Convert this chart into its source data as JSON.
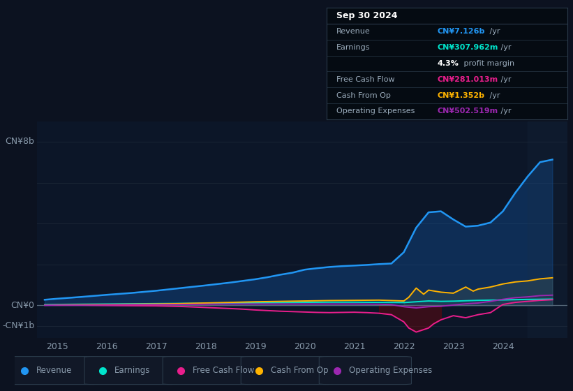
{
  "bg_color": "#0c1220",
  "plot_bg_color": "#0c1628",
  "grid_color": "#1a2535",
  "title_date": "Sep 30 2024",
  "table_rows": [
    {
      "label": "Revenue",
      "value": "CN¥7.126b",
      "unit": " /yr",
      "color": "#2196f3"
    },
    {
      "label": "Earnings",
      "value": "CN¥307.962m",
      "unit": " /yr",
      "color": "#00e5cc"
    },
    {
      "label": "",
      "value": "4.3%",
      "unit": " profit margin",
      "color": "#ffffff"
    },
    {
      "label": "Free Cash Flow",
      "value": "CN¥281.013m",
      "unit": " /yr",
      "color": "#e91e8c"
    },
    {
      "label": "Cash From Op",
      "value": "CN¥1.352b",
      "unit": " /yr",
      "color": "#ffb300"
    },
    {
      "label": "Operating Expenses",
      "value": "CN¥502.519m",
      "unit": " /yr",
      "color": "#9c27b0"
    }
  ],
  "series_colors": [
    "#2196f3",
    "#00e5cc",
    "#e91e8c",
    "#ffb300",
    "#9c27b0"
  ],
  "legend_labels": [
    "Revenue",
    "Earnings",
    "Free Cash Flow",
    "Cash From Op",
    "Operating Expenses"
  ],
  "legend_dot_colors": [
    "#2196f3",
    "#00e5cc",
    "#e91e8c",
    "#ffb300",
    "#9c27b0"
  ],
  "ylabel_top": "CN¥8b",
  "ylabel_zero": "CN¥0",
  "ylabel_bottom": "-CN¥1b",
  "ylim": [
    -1.6,
    9.0
  ],
  "xlim": [
    2014.6,
    2025.3
  ],
  "xticks": [
    2015,
    2016,
    2017,
    2018,
    2019,
    2020,
    2021,
    2022,
    2023,
    2024
  ],
  "revenue_t": [
    2014.75,
    2015.0,
    2015.5,
    2016.0,
    2016.5,
    2017.0,
    2017.5,
    2018.0,
    2018.5,
    2019.0,
    2019.25,
    2019.5,
    2019.75,
    2020.0,
    2020.25,
    2020.5,
    2020.75,
    2021.0,
    2021.25,
    2021.5,
    2021.75,
    2022.0,
    2022.25,
    2022.5,
    2022.75,
    2023.0,
    2023.25,
    2023.5,
    2023.75,
    2024.0,
    2024.25,
    2024.5,
    2024.75,
    2025.0
  ],
  "revenue_v": [
    0.28,
    0.33,
    0.42,
    0.52,
    0.61,
    0.72,
    0.85,
    0.98,
    1.12,
    1.28,
    1.38,
    1.5,
    1.6,
    1.75,
    1.82,
    1.88,
    1.92,
    1.95,
    1.98,
    2.02,
    2.05,
    2.6,
    3.8,
    4.55,
    4.6,
    4.2,
    3.85,
    3.9,
    4.05,
    4.6,
    5.5,
    6.3,
    7.0,
    7.126
  ],
  "earnings_t": [
    2014.75,
    2015.0,
    2015.5,
    2016.0,
    2016.5,
    2017.0,
    2017.5,
    2018.0,
    2018.5,
    2019.0,
    2019.5,
    2020.0,
    2020.5,
    2021.0,
    2021.5,
    2022.0,
    2022.25,
    2022.5,
    2022.75,
    2023.0,
    2023.25,
    2023.5,
    2023.75,
    2024.0,
    2024.5,
    2025.0
  ],
  "earnings_v": [
    0.04,
    0.05,
    0.06,
    0.07,
    0.08,
    0.09,
    0.1,
    0.11,
    0.12,
    0.13,
    0.14,
    0.15,
    0.16,
    0.16,
    0.15,
    0.14,
    0.18,
    0.22,
    0.2,
    0.21,
    0.23,
    0.25,
    0.26,
    0.27,
    0.295,
    0.308
  ],
  "fcf_t": [
    2014.75,
    2015.0,
    2015.5,
    2016.0,
    2016.5,
    2017.0,
    2017.5,
    2018.0,
    2018.5,
    2018.75,
    2019.0,
    2019.25,
    2019.5,
    2019.75,
    2020.0,
    2020.25,
    2020.5,
    2020.75,
    2021.0,
    2021.25,
    2021.5,
    2021.75,
    2022.0,
    2022.1,
    2022.25,
    2022.5,
    2022.6,
    2022.75,
    2023.0,
    2023.25,
    2023.5,
    2023.75,
    2024.0,
    2024.25,
    2024.5,
    2024.75,
    2025.0
  ],
  "fcf_v": [
    0.01,
    0.01,
    0.01,
    0.0,
    -0.01,
    -0.02,
    -0.05,
    -0.1,
    -0.15,
    -0.18,
    -0.22,
    -0.25,
    -0.28,
    -0.3,
    -0.32,
    -0.34,
    -0.35,
    -0.34,
    -0.33,
    -0.35,
    -0.38,
    -0.45,
    -0.8,
    -1.1,
    -1.3,
    -1.1,
    -0.9,
    -0.7,
    -0.5,
    -0.6,
    -0.45,
    -0.35,
    0.05,
    0.15,
    0.2,
    0.25,
    0.281
  ],
  "cop_t": [
    2014.75,
    2015.0,
    2015.5,
    2016.0,
    2016.5,
    2017.0,
    2017.5,
    2018.0,
    2018.5,
    2019.0,
    2019.5,
    2020.0,
    2020.5,
    2021.0,
    2021.5,
    2022.0,
    2022.1,
    2022.25,
    2022.4,
    2022.5,
    2022.75,
    2023.0,
    2023.25,
    2023.4,
    2023.5,
    2023.75,
    2024.0,
    2024.25,
    2024.5,
    2024.75,
    2025.0
  ],
  "cop_v": [
    0.02,
    0.03,
    0.04,
    0.05,
    0.06,
    0.07,
    0.09,
    0.12,
    0.15,
    0.18,
    0.2,
    0.22,
    0.24,
    0.25,
    0.26,
    0.22,
    0.4,
    0.85,
    0.55,
    0.75,
    0.65,
    0.6,
    0.9,
    0.7,
    0.8,
    0.9,
    1.05,
    1.15,
    1.2,
    1.3,
    1.352
  ],
  "oe_t": [
    2014.75,
    2015.0,
    2015.5,
    2016.0,
    2016.5,
    2017.0,
    2017.5,
    2018.0,
    2018.5,
    2019.0,
    2019.5,
    2020.0,
    2020.5,
    2021.0,
    2021.5,
    2021.75,
    2022.0,
    2022.25,
    2022.5,
    2022.75,
    2023.0,
    2023.25,
    2023.5,
    2023.75,
    2024.0,
    2024.25,
    2024.5,
    2024.75,
    2025.0
  ],
  "oe_v": [
    0.01,
    0.02,
    0.02,
    0.03,
    0.04,
    0.04,
    0.05,
    0.06,
    0.07,
    0.07,
    0.07,
    0.07,
    0.07,
    0.07,
    0.06,
    0.04,
    -0.06,
    -0.12,
    -0.06,
    -0.04,
    0.02,
    0.08,
    0.12,
    0.2,
    0.3,
    0.38,
    0.42,
    0.48,
    0.503
  ]
}
